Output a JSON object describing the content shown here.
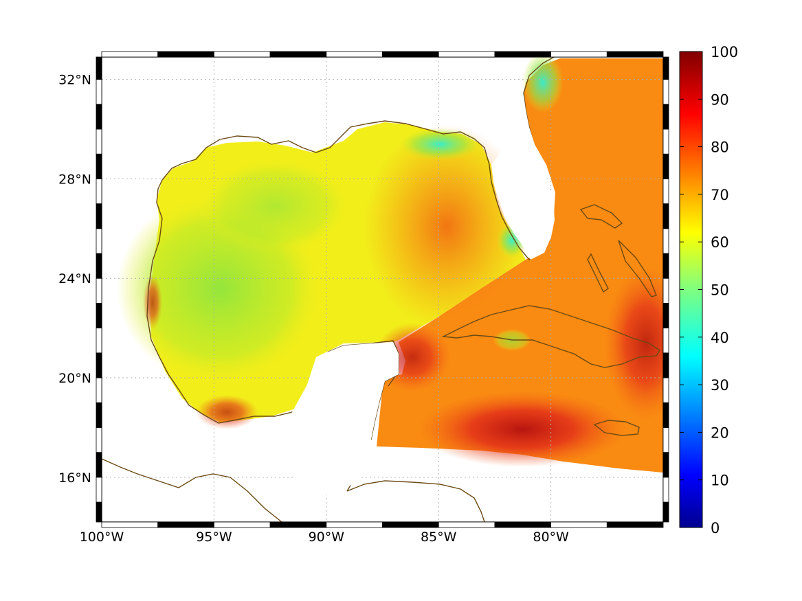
{
  "map": {
    "lon_range": [
      -100,
      -75
    ],
    "lat_range": [
      14.2,
      32.9
    ],
    "lon_ticks": [
      {
        "value": -100,
        "label": "100°W"
      },
      {
        "value": -95,
        "label": "95°W"
      },
      {
        "value": -90,
        "label": "90°W"
      },
      {
        "value": -85,
        "label": "85°W"
      },
      {
        "value": -80,
        "label": "80°W"
      }
    ],
    "lat_ticks": [
      {
        "value": 16,
        "label": "16°N"
      },
      {
        "value": 20,
        "label": "20°N"
      },
      {
        "value": 24,
        "label": "24°N"
      },
      {
        "value": 28,
        "label": "28°N"
      },
      {
        "value": 32,
        "label": "32°N"
      }
    ],
    "grid": "dotted",
    "coastline_color": "#6b4a14",
    "field_colors": {
      "green": "#8ee63a",
      "yellow": "#f2ee1a",
      "orange": "#f98a12",
      "red": "#e0231a",
      "dark_red": "#a30d0d",
      "cyan": "#2ff0d0"
    }
  },
  "colorbar": {
    "range": [
      0,
      100
    ],
    "colormap": "jet",
    "ticks": [
      {
        "value": 0,
        "label": "0"
      },
      {
        "value": 10,
        "label": "10"
      },
      {
        "value": 20,
        "label": "20"
      },
      {
        "value": 30,
        "label": "30"
      },
      {
        "value": 40,
        "label": "40"
      },
      {
        "value": 50,
        "label": "50"
      },
      {
        "value": 60,
        "label": "60"
      },
      {
        "value": 70,
        "label": "70"
      },
      {
        "value": 80,
        "label": "80"
      },
      {
        "value": 90,
        "label": "90"
      },
      {
        "value": 100,
        "label": "100"
      }
    ]
  }
}
